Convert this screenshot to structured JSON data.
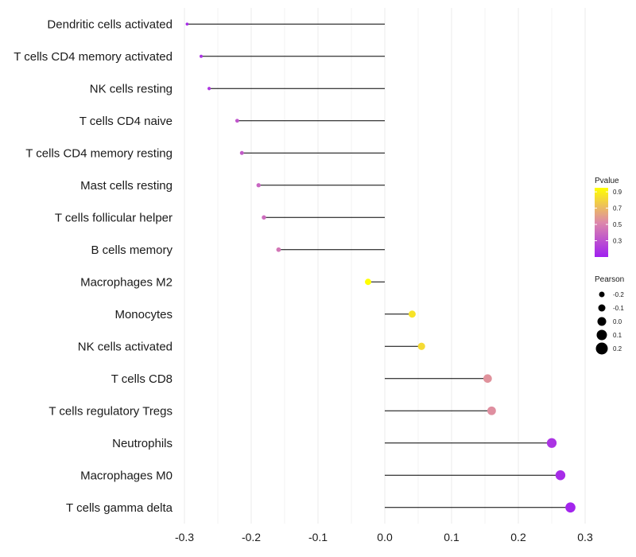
{
  "chart_data": {
    "type": "lollipop",
    "title": "",
    "xlabel": "",
    "ylabel": "",
    "xlim": [
      -0.3,
      0.3
    ],
    "x_ticks": [
      -0.3,
      -0.2,
      -0.1,
      0.0,
      0.1,
      0.2,
      0.3
    ],
    "x_tick_labels": [
      "-0.3",
      "-0.2",
      "-0.1",
      "0.0",
      "0.1",
      "0.2",
      "0.3"
    ],
    "grid": true,
    "categories": [
      "Dendritic cells activated",
      "T cells CD4 memory activated",
      "NK cells resting",
      "T cells CD4 naive",
      "T cells CD4 memory resting",
      "Mast cells resting",
      "T cells follicular helper",
      "B cells memory",
      "Macrophages M2",
      "Monocytes",
      "NK cells activated",
      "T cells CD8",
      "T cells regulatory  Tregs",
      "Neutrophils",
      "Macrophages M0",
      "T cells gamma delta"
    ],
    "pearson": [
      -0.296,
      -0.275,
      -0.263,
      -0.221,
      -0.214,
      -0.189,
      -0.181,
      -0.159,
      -0.025,
      0.041,
      0.055,
      0.154,
      0.16,
      0.25,
      0.263,
      0.278
    ],
    "pvalue": [
      0.15,
      0.18,
      0.2,
      0.32,
      0.34,
      0.38,
      0.41,
      0.45,
      0.95,
      0.85,
      0.82,
      0.56,
      0.55,
      0.18,
      0.15,
      0.12
    ],
    "color_legend": {
      "title": "Pvalue",
      "ticks": [
        0.9,
        0.7,
        0.5,
        0.3
      ],
      "tick_labels": [
        "0.9",
        "0.7",
        "0.5",
        "0.3"
      ],
      "range": [
        0.1,
        0.95
      ],
      "low_color": "#a020f0",
      "mid_color": "#dd88aa",
      "high_color": "#ffff00"
    },
    "size_legend": {
      "title": "Pearson",
      "values": [
        -0.2,
        -0.1,
        0.0,
        0.1,
        0.2
      ],
      "labels": [
        "-0.2",
        "-0.1",
        "0.0",
        "0.1",
        "0.2"
      ]
    },
    "colors": {
      "segment": "#000000",
      "grid": "#ebebeb"
    }
  }
}
